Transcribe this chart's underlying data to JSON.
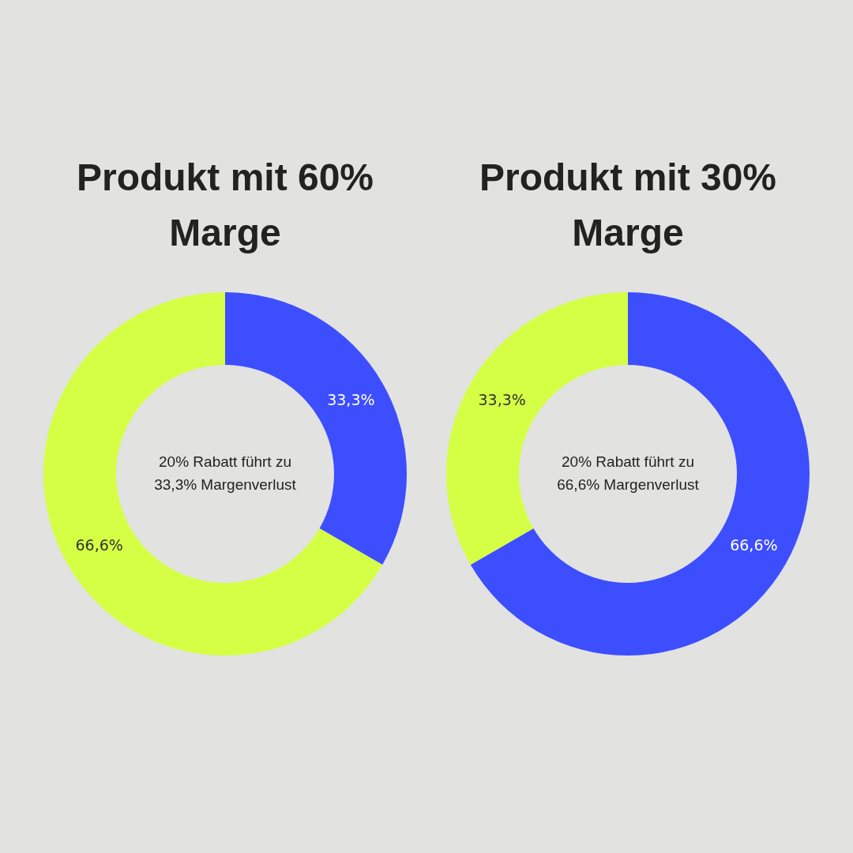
{
  "chart_data": [
    {
      "type": "donut",
      "title": "Produkt mit 60% Marge",
      "categories": [
        null,
        null
      ],
      "values": [
        33.3,
        66.6
      ],
      "colors": [
        "#3d4eff",
        "#d4ff45"
      ],
      "value_labels": [
        "33,3%",
        "66,6%"
      ],
      "annotations": [
        "20% Rabatt führt zu 33,3% Margenverlust"
      ]
    },
    {
      "type": "donut",
      "title": "Produkt mit 30% Marge",
      "categories": [
        null,
        null
      ],
      "values": [
        66.6,
        33.3
      ],
      "colors": [
        "#3d4eff",
        "#d4ff45"
      ],
      "value_labels": [
        "66,6%",
        "33,3%"
      ],
      "annotations": [
        "20% Rabatt führt zu 66,6% Margenverlust"
      ]
    }
  ]
}
